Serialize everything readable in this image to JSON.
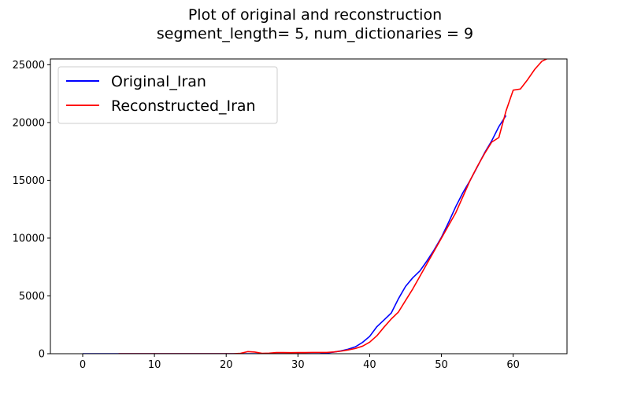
{
  "chart_data": {
    "type": "line",
    "title": [
      "Plot of original and reconstruction",
      "segment_length= 5, num_dictionaries = 9"
    ],
    "xlim": [
      -4.5,
      67.5
    ],
    "ylim": [
      0,
      25500
    ],
    "xticks": [
      0,
      10,
      20,
      30,
      40,
      50,
      60
    ],
    "yticks": [
      0,
      5000,
      10000,
      15000,
      20000,
      25000
    ],
    "legend_position": "top-left",
    "series": [
      {
        "name": "Original_Iran",
        "color": "#0000ff",
        "x": [
          0,
          1,
          2,
          3,
          4,
          5,
          6,
          7,
          8,
          9,
          10,
          11,
          12,
          13,
          14,
          15,
          16,
          17,
          18,
          19,
          20,
          21,
          22,
          23,
          24,
          25,
          26,
          27,
          28,
          29,
          30,
          31,
          32,
          33,
          34,
          35,
          36,
          37,
          38,
          39,
          40,
          41,
          42,
          43,
          44,
          45,
          46,
          47,
          48,
          49,
          50,
          51,
          52,
          53,
          54,
          55,
          56,
          57,
          58,
          59
        ],
        "y": [
          0,
          0,
          0,
          0,
          0,
          0,
          0,
          0,
          0,
          0,
          0,
          0,
          0,
          0,
          0,
          0,
          0,
          0,
          0,
          0,
          0,
          0,
          0,
          0,
          0,
          0,
          0,
          0,
          0,
          0,
          0,
          0,
          0,
          0,
          61,
          139,
          245,
          388,
          593,
          978,
          1501,
          2336,
          2922,
          3513,
          4747,
          5823,
          6566,
          7161,
          8042,
          9000,
          10075,
          11364,
          12729,
          13938,
          14991,
          16169,
          17361,
          18407,
          19644,
          20610
        ]
      },
      {
        "name": "Reconstructed_Iran",
        "color": "#ff0000",
        "x": [
          5,
          6,
          7,
          8,
          9,
          10,
          11,
          12,
          13,
          14,
          15,
          16,
          17,
          18,
          19,
          20,
          21,
          22,
          23,
          24,
          25,
          26,
          27,
          28,
          29,
          30,
          31,
          32,
          33,
          34,
          35,
          36,
          37,
          38,
          39,
          40,
          41,
          42,
          43,
          44,
          45,
          46,
          47,
          48,
          49,
          50,
          51,
          52,
          53,
          54,
          55,
          56,
          57,
          58,
          59,
          60,
          61,
          62,
          63,
          64,
          65
        ],
        "y": [
          0,
          0,
          0,
          0,
          0,
          0,
          0,
          0,
          0,
          0,
          0,
          0,
          0,
          0,
          0,
          0,
          0,
          30,
          180,
          140,
          30,
          50,
          100,
          100,
          90,
          100,
          100,
          110,
          110,
          110,
          150,
          220,
          330,
          450,
          650,
          1000,
          1550,
          2300,
          3000,
          3600,
          4600,
          5600,
          6700,
          7800,
          8900,
          10000,
          11100,
          12200,
          13600,
          15000,
          16200,
          17300,
          18300,
          18700,
          21000,
          22800,
          22900,
          23700,
          24600,
          25300,
          25600
        ]
      }
    ]
  }
}
